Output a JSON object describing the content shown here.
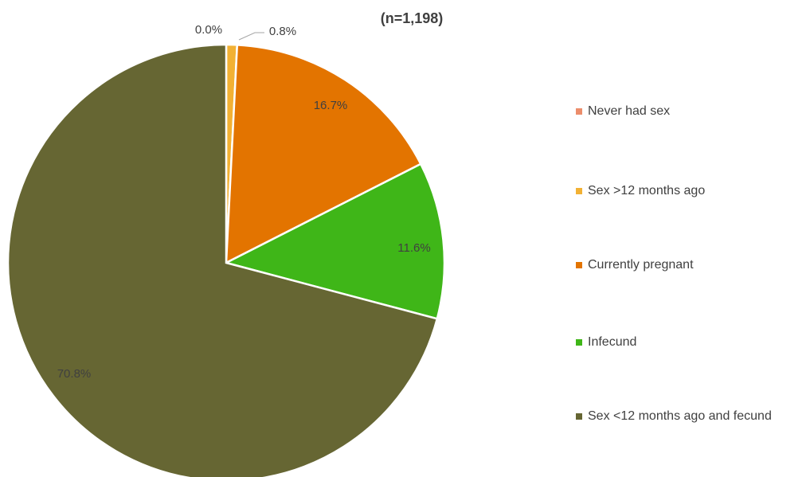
{
  "chart_data": {
    "type": "pie",
    "title": "(n=1,198)",
    "categories": [
      "Never had sex",
      "Sex >12 months ago",
      "Currently pregnant",
      "Infecund",
      "Sex <12 months ago and fecund"
    ],
    "values": [
      0.0,
      0.8,
      16.7,
      11.6,
      70.8
    ],
    "value_labels": [
      "0.0%",
      "0.8%",
      "16.7%",
      "11.6%",
      "70.8%"
    ],
    "colors": [
      "#ec8d6b",
      "#f2b134",
      "#e37400",
      "#3fb618",
      "#666633"
    ],
    "legend": "right"
  }
}
